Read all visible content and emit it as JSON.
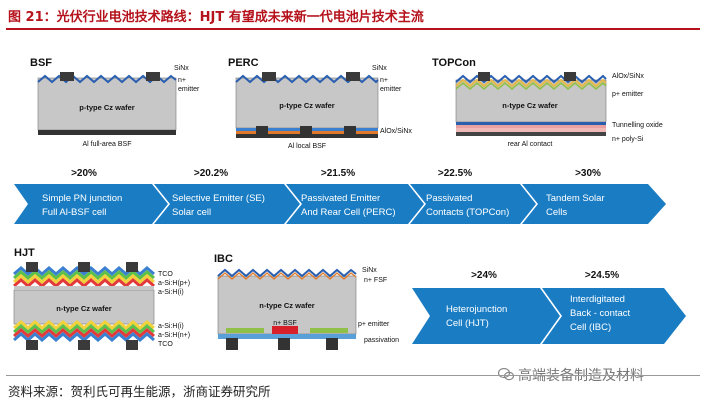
{
  "header": {
    "title": "图 21：光伏行业电池技术路线：HJT 有望成未来新一代电池片技术主流"
  },
  "cells": {
    "bsf": {
      "name": "BSF",
      "wafer": "p-type Cz wafer",
      "sinx": "SiNx",
      "emitter_1": "n+",
      "emitter_2": "emitter",
      "bottom": "Al full-area BSF"
    },
    "perc": {
      "name": "PERC",
      "wafer": "p-type Cz wafer",
      "sinx": "SiNx",
      "emitter_1": "n+",
      "emitter_2": "emitter",
      "passivation": "AlOx/SiNx",
      "bottom": "Al local BSF"
    },
    "topcon": {
      "name": "TOPCon",
      "wafer": "n-type Cz wafer",
      "alox": "AlOx/SiNx",
      "emitter": "p+ emitter",
      "tunnel": "Tunnelling oxide",
      "rear": "rear Al contact",
      "polysi": "n+ poly-Si"
    },
    "hjt": {
      "name": "HJT",
      "wafer": "n-type Cz wafer",
      "tco_top": "TCO",
      "asi_p": "a-Si:H(p+)",
      "asi_i_top": "a-Si:H(i)",
      "asi_i_bot": "a-Si:H(i)",
      "asi_n": "a-Si:H(n+)",
      "tco_bot": "TCO"
    },
    "ibc": {
      "name": "IBC",
      "wafer": "n-type Cz wafer",
      "sinx": "SiNx",
      "fsf": "n+ FSF",
      "bsf": "n+ BSF",
      "emitter": "p+ emitter",
      "passivation": "passivation"
    }
  },
  "roadmap_top": [
    {
      "efficiency": ">20%",
      "line1": "Simple PN junction",
      "line2": "Full Al-BSF cell"
    },
    {
      "efficiency": ">20.2%",
      "line1": "Selective Emitter (SE)",
      "line2": "Solar cell"
    },
    {
      "efficiency": ">21.5%",
      "line1": "Passivated Emitter",
      "line2": "And Rear Cell (PERC)"
    },
    {
      "efficiency": ">22.5%",
      "line1": "Passivated",
      "line2": "Contacts (TOPCon)"
    },
    {
      "efficiency": ">30%",
      "line1": "Tandem Solar",
      "line2": "Cells"
    }
  ],
  "roadmap_bottom": [
    {
      "efficiency": ">24%",
      "line1": "Heterojunction",
      "line2": "Cell (HJT)",
      "line3": ""
    },
    {
      "efficiency": ">24.5%",
      "line1": "Interdigitated",
      "line2": "Back - contact",
      "line3": "Cell (IBC)"
    }
  ],
  "footer": {
    "source": "资料来源：贺利氏可再生能源，浙商证券研究所",
    "watermark": "高端装备制造及材料"
  },
  "colors": {
    "arrow_blue": "#1a7dc4",
    "title_red": "#b5121b"
  }
}
